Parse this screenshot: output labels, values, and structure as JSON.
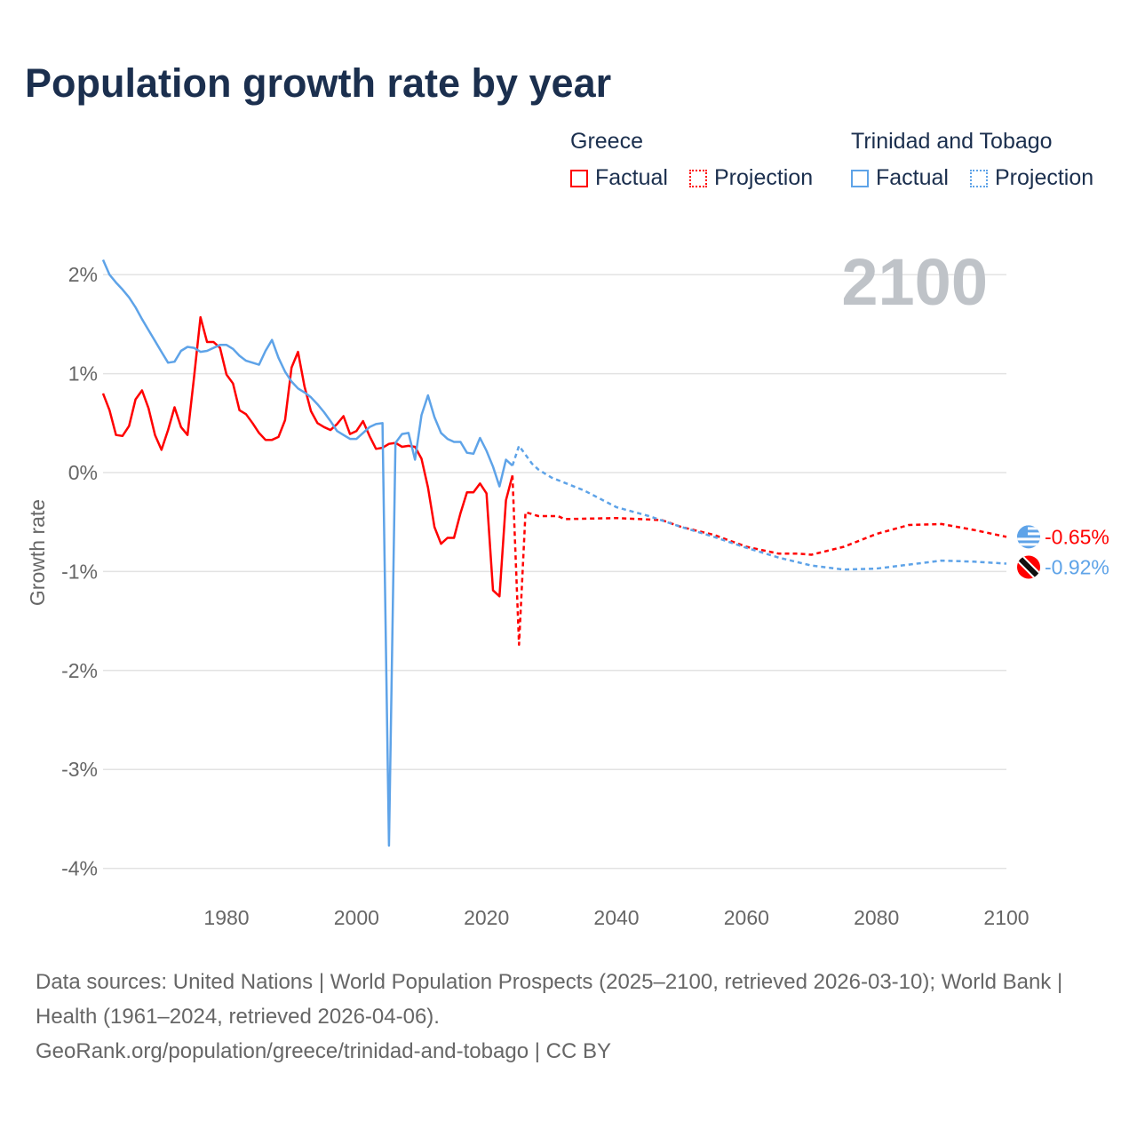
{
  "title": "Population growth rate by year",
  "legend": {
    "groups": [
      {
        "name": "Greece",
        "factual": "Factual",
        "projection": "Projection",
        "color": "#ff0000"
      },
      {
        "name": "Trinidad and Tobago",
        "factual": "Factual",
        "projection": "Projection",
        "color": "#5ea3e8"
      }
    ]
  },
  "footer": {
    "sources": "Data sources: United Nations | World Population Prospects (2025–2100, retrieved 2026-03-10); World Bank | Health (1961–2024, retrieved 2026-04-06).",
    "link": "GeoRank.org/population/greece/trinidad-and-tobago | CC BY"
  },
  "chart_data": {
    "type": "line",
    "title": "Population growth rate by year",
    "xlabel": "",
    "ylabel": "Growth rate",
    "xlim": [
      1961,
      2100
    ],
    "ylim": [
      -4.3,
      2.3
    ],
    "xticks": [
      1980,
      2000,
      2020,
      2040,
      2060,
      2080,
      2100
    ],
    "yticks": [
      {
        "v": 2,
        "label": "2%"
      },
      {
        "v": 1,
        "label": "1%"
      },
      {
        "v": 0,
        "label": "0%"
      },
      {
        "v": -1,
        "label": "-1%"
      },
      {
        "v": -2,
        "label": "-2%"
      },
      {
        "v": -3,
        "label": "-3%"
      },
      {
        "v": -4,
        "label": "-4%"
      }
    ],
    "year_watermark": "2100",
    "series": [
      {
        "name": "Greece Factual",
        "color": "#ff0000",
        "dashed": false,
        "x_start": 1961,
        "values": [
          0.8,
          0.63,
          0.38,
          0.37,
          0.47,
          0.74,
          0.83,
          0.65,
          0.38,
          0.23,
          0.43,
          0.66,
          0.46,
          0.38,
          0.96,
          1.57,
          1.32,
          1.32,
          1.26,
          0.99,
          0.9,
          0.63,
          0.59,
          0.5,
          0.4,
          0.33,
          0.33,
          0.36,
          0.53,
          1.06,
          1.22,
          0.87,
          0.62,
          0.5,
          0.46,
          0.43,
          0.49,
          0.57,
          0.39,
          0.42,
          0.52,
          0.37,
          0.24,
          0.25,
          0.29,
          0.3,
          0.26,
          0.27,
          0.26,
          0.14,
          -0.15,
          -0.55,
          -0.72,
          -0.66,
          -0.66,
          -0.41,
          -0.2,
          -0.2,
          -0.11,
          -0.21,
          -1.19,
          -1.25,
          -0.28,
          -0.03
        ]
      },
      {
        "name": "Greece Projection",
        "color": "#ff0000",
        "dashed": true,
        "points": [
          [
            2024,
            -0.03
          ],
          [
            2025,
            -1.74
          ],
          [
            2026,
            -0.4
          ],
          [
            2028,
            -0.44
          ],
          [
            2031,
            -0.44
          ],
          [
            2032,
            -0.47
          ],
          [
            2040,
            -0.46
          ],
          [
            2047,
            -0.48
          ],
          [
            2050,
            -0.55
          ],
          [
            2055,
            -0.63
          ],
          [
            2060,
            -0.75
          ],
          [
            2065,
            -0.82
          ],
          [
            2068,
            -0.82
          ],
          [
            2070,
            -0.83
          ],
          [
            2075,
            -0.75
          ],
          [
            2080,
            -0.62
          ],
          [
            2085,
            -0.53
          ],
          [
            2090,
            -0.52
          ],
          [
            2095,
            -0.58
          ],
          [
            2100,
            -0.65
          ]
        ]
      },
      {
        "name": "Trinidad and Tobago Factual",
        "color": "#5ea3e8",
        "dashed": false,
        "x_start": 1961,
        "values": [
          2.15,
          2.0,
          1.92,
          1.85,
          1.77,
          1.67,
          1.55,
          1.44,
          1.33,
          1.22,
          1.11,
          1.12,
          1.23,
          1.27,
          1.26,
          1.22,
          1.23,
          1.26,
          1.29,
          1.29,
          1.25,
          1.18,
          1.13,
          1.11,
          1.09,
          1.23,
          1.34,
          1.16,
          1.02,
          0.92,
          0.85,
          0.81,
          0.76,
          0.69,
          0.61,
          0.52,
          0.42,
          0.38,
          0.34,
          0.34,
          0.4,
          0.46,
          0.49,
          0.5,
          -3.77,
          0.3,
          0.39,
          0.4,
          0.13,
          0.58,
          0.78,
          0.56,
          0.4,
          0.34,
          0.31,
          0.31,
          0.2,
          0.19,
          0.35,
          0.22,
          0.06,
          -0.14,
          0.13,
          0.07
        ]
      },
      {
        "name": "Trinidad and Tobago Projection",
        "color": "#5ea3e8",
        "dashed": true,
        "points": [
          [
            2024,
            0.07
          ],
          [
            2025,
            0.27
          ],
          [
            2026,
            0.18
          ],
          [
            2027,
            0.09
          ],
          [
            2028,
            0.03
          ],
          [
            2030,
            -0.05
          ],
          [
            2035,
            -0.18
          ],
          [
            2040,
            -0.35
          ],
          [
            2045,
            -0.44
          ],
          [
            2050,
            -0.55
          ],
          [
            2055,
            -0.65
          ],
          [
            2060,
            -0.76
          ],
          [
            2065,
            -0.86
          ],
          [
            2070,
            -0.94
          ],
          [
            2075,
            -0.98
          ],
          [
            2080,
            -0.97
          ],
          [
            2085,
            -0.93
          ],
          [
            2090,
            -0.89
          ],
          [
            2095,
            -0.9
          ],
          [
            2100,
            -0.92
          ]
        ]
      }
    ],
    "end_labels": [
      {
        "country": "Greece",
        "value": -0.65,
        "label": "-0.65%",
        "color": "#ff0000"
      },
      {
        "country": "Trinidad and Tobago",
        "value": -0.92,
        "label": "-0.92%",
        "color": "#5ea3e8"
      }
    ]
  }
}
